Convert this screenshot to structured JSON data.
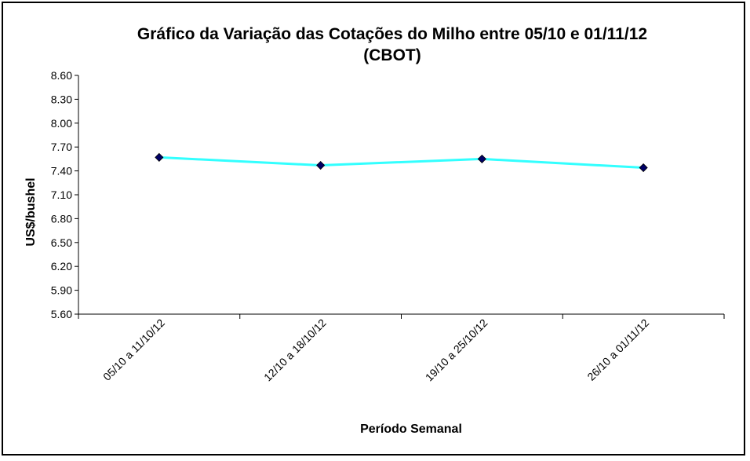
{
  "chart_data": {
    "type": "line",
    "title": "Gráfico da Variação das Cotações do Milho entre 05/10 e 01/11/12",
    "subtitle": "(CBOT)",
    "xlabel": "Período Semanal",
    "ylabel": "US$/bushel",
    "categories": [
      "05/10 a 11/10/12",
      "12/10 a 18/10/12",
      "19/10 a 25/10/12",
      "26/10 a 01/11/12"
    ],
    "series": [
      {
        "values": [
          7.57,
          7.47,
          7.55,
          7.44
        ],
        "color": "#33FFFF",
        "marker_color": "#000066"
      }
    ],
    "yticks": [
      "5.60",
      "5.90",
      "6.20",
      "6.50",
      "6.80",
      "7.10",
      "7.40",
      "7.70",
      "8.00",
      "8.30",
      "8.60"
    ],
    "ylim": [
      5.6,
      8.6
    ],
    "grid": false,
    "legend": "none"
  }
}
